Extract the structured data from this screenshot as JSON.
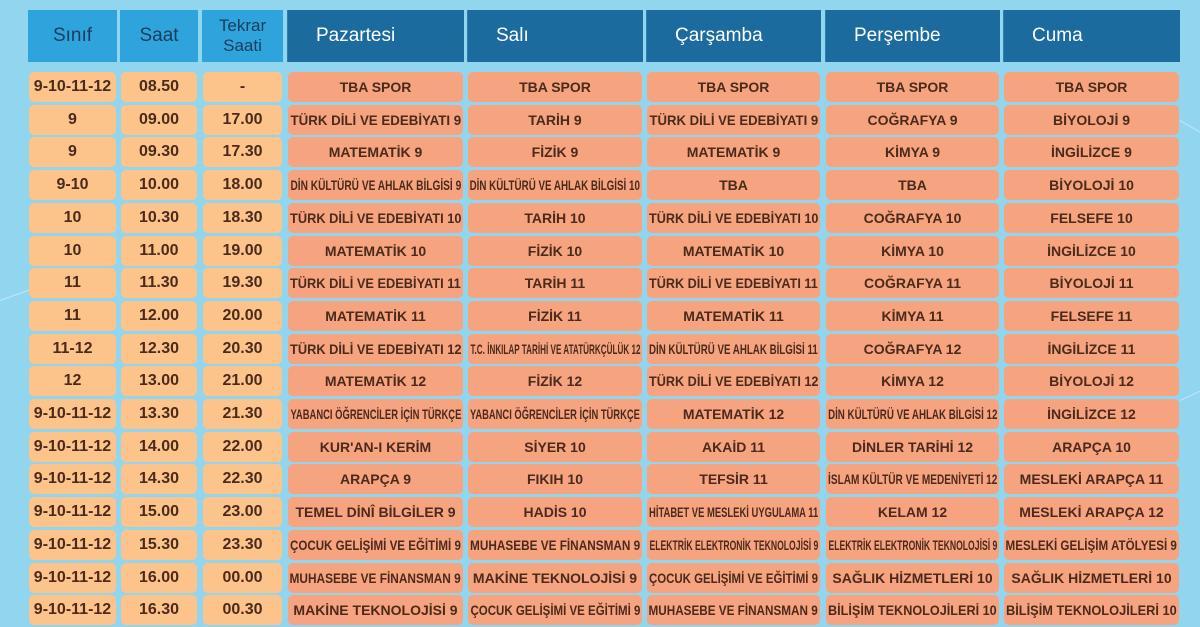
{
  "headers": [
    "Sınıf",
    "Saat",
    "Tekrar Saati",
    "Pazartesi",
    "Salı",
    "Çarşamba",
    "Perşembe",
    "Cuma"
  ],
  "colors": {
    "background": "#92d5ef",
    "header_left": "#2fa4dc",
    "header_day": "#1c6b9e",
    "info_cell": "#fcc48a",
    "subject_cell": "#f6a47f",
    "text": "#4b2a1c"
  },
  "rows": [
    {
      "sinif": "9-10-11-12",
      "saat": "08.50",
      "tekrar": "-",
      "days": [
        "TBA SPOR",
        "TBA SPOR",
        "TBA SPOR",
        "TBA SPOR",
        "TBA SPOR"
      ]
    },
    {
      "sinif": "9",
      "saat": "09.00",
      "tekrar": "17.00",
      "days": [
        "TÜRK DİLİ VE EDEBİYATI 9",
        "TARİH 9",
        "TÜRK DİLİ VE EDEBİYATI 9",
        "COĞRAFYA 9",
        "BİYOLOJİ 9"
      ]
    },
    {
      "sinif": "9",
      "saat": "09.30",
      "tekrar": "17.30",
      "days": [
        "MATEMATİK 9",
        "FİZİK 9",
        "MATEMATİK 9",
        "KİMYA 9",
        "İNGİLİZCE 9"
      ]
    },
    {
      "sinif": "9-10",
      "saat": "10.00",
      "tekrar": "18.00",
      "days": [
        "DİN KÜLTÜRÜ VE AHLAK BİLGİSİ 9",
        "DİN KÜLTÜRÜ VE AHLAK BİLGİSİ 10",
        "TBA",
        "TBA",
        "BİYOLOJİ 10"
      ]
    },
    {
      "sinif": "10",
      "saat": "10.30",
      "tekrar": "18.30",
      "days": [
        "TÜRK DİLİ VE EDEBİYATI 10",
        "TARİH 10",
        "TÜRK DİLİ VE EDEBİYATI 10",
        "COĞRAFYA 10",
        "FELSEFE 10"
      ]
    },
    {
      "sinif": "10",
      "saat": "11.00",
      "tekrar": "19.00",
      "days": [
        "MATEMATİK 10",
        "FİZİK 10",
        "MATEMATİK 10",
        "KİMYA 10",
        "İNGİLİZCE 10"
      ]
    },
    {
      "sinif": "11",
      "saat": "11.30",
      "tekrar": "19.30",
      "days": [
        "TÜRK DİLİ VE EDEBİYATI 11",
        "TARİH 11",
        "TÜRK DİLİ VE EDEBİYATI 11",
        "COĞRAFYA 11",
        "BİYOLOJİ 11"
      ]
    },
    {
      "sinif": "11",
      "saat": "12.00",
      "tekrar": "20.00",
      "days": [
        "MATEMATİK 11",
        "FİZİK 11",
        "MATEMATİK 11",
        "KİMYA 11",
        "FELSEFE 11"
      ]
    },
    {
      "sinif": "11-12",
      "saat": "12.30",
      "tekrar": "20.30",
      "days": [
        "TÜRK DİLİ VE EDEBİYATI 12",
        "T.C. İNKILAP TARİHİ VE ATATÜRKÇÜLÜK 12",
        "DİN KÜLTÜRÜ VE AHLAK BİLGİSİ 11",
        "COĞRAFYA 12",
        "İNGİLİZCE 11"
      ]
    },
    {
      "sinif": "12",
      "saat": "13.00",
      "tekrar": "21.00",
      "days": [
        "MATEMATİK 12",
        "FİZİK 12",
        "TÜRK DİLİ VE EDEBİYATI 12",
        "KİMYA 12",
        "BİYOLOJİ 12"
      ]
    },
    {
      "sinif": "9-10-11-12",
      "saat": "13.30",
      "tekrar": "21.30",
      "days": [
        "YABANCI ÖĞRENCİLER İÇİN TÜRKÇE",
        "YABANCI ÖĞRENCİLER İÇİN TÜRKÇE",
        "MATEMATİK 12",
        "DİN KÜLTÜRÜ VE AHLAK BİLGİSİ 12",
        "İNGİLİZCE 12"
      ]
    },
    {
      "sinif": "9-10-11-12",
      "saat": "14.00",
      "tekrar": "22.00",
      "days": [
        "KUR'AN-I KERİM",
        "SİYER 10",
        "AKAİD 11",
        "DİNLER TARİHİ 12",
        "ARAPÇA 10"
      ]
    },
    {
      "sinif": "9-10-11-12",
      "saat": "14.30",
      "tekrar": "22.30",
      "days": [
        "ARAPÇA 9",
        "FIKIH 10",
        "TEFSİR 11",
        "İSLAM KÜLTÜR VE MEDENİYETİ 12",
        "MESLEKİ ARAPÇA 11"
      ]
    },
    {
      "sinif": "9-10-11-12",
      "saat": "15.00",
      "tekrar": "23.00",
      "days": [
        "TEMEL DİNÎ BİLGİLER 9",
        "HADİS 10",
        "HİTABET VE MESLEKİ UYGULAMA 11",
        "KELAM 12",
        "MESLEKİ ARAPÇA 12"
      ]
    },
    {
      "sinif": "9-10-11-12",
      "saat": "15.30",
      "tekrar": "23.30",
      "days": [
        "ÇOCUK GELİŞİMİ VE EĞİTİMİ 9",
        "MUHASEBE VE FİNANSMAN 9",
        "ELEKTRİK ELEKTRONİK TEKNOLOJİSİ 9",
        "ELEKTRİK ELEKTRONİK TEKNOLOJİSİ 9",
        "MESLEKİ GELİŞİM ATÖLYESİ 9"
      ]
    },
    {
      "sinif": "9-10-11-12",
      "saat": "16.00",
      "tekrar": "00.00",
      "days": [
        "MUHASEBE VE FİNANSMAN 9",
        "MAKİNE TEKNOLOJİSİ 9",
        "ÇOCUK GELİŞİMİ VE EĞİTİMİ 9",
        "SAĞLIK HİZMETLERİ 10",
        "SAĞLIK HİZMETLERİ 10"
      ]
    },
    {
      "sinif": "9-10-11-12",
      "saat": "16.30",
      "tekrar": "00.30",
      "days": [
        "MAKİNE TEKNOLOJİSİ 9",
        "ÇOCUK GELİŞİMİ VE EĞİTİMİ 9",
        "MUHASEBE VE FİNANSMAN 9",
        "BİLİŞİM TEKNOLOJİLERİ 10",
        "BİLİŞİM TEKNOLOJİLERİ 10"
      ]
    }
  ]
}
